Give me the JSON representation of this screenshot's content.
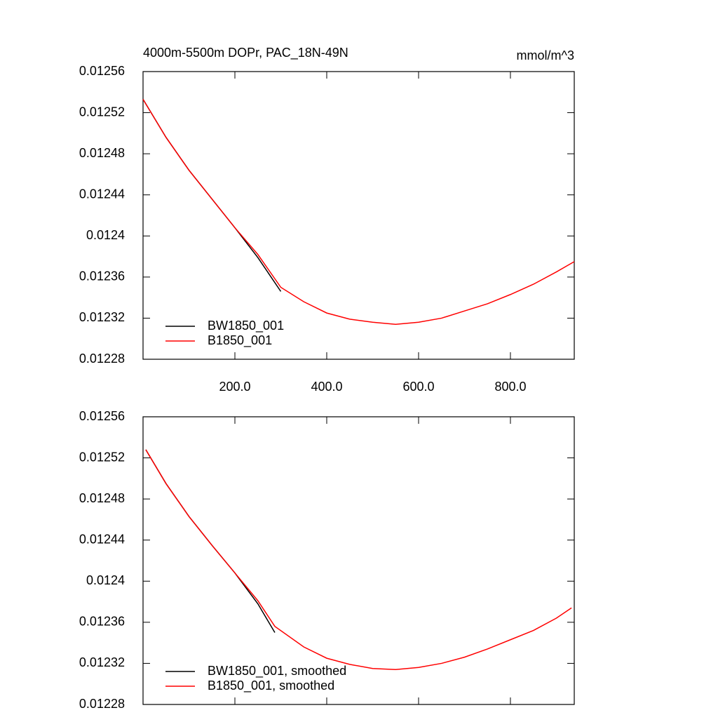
{
  "chart_data": [
    {
      "type": "line",
      "title": "4000m-5500m DOPr, PAC_18N-49N",
      "units_label": "mmol/m^3",
      "x": [
        0,
        50,
        100,
        150,
        200,
        250,
        300,
        350,
        400,
        450,
        500,
        550,
        600,
        650,
        700,
        750,
        800,
        850,
        900,
        939
      ],
      "series": [
        {
          "name": "BW1850_001",
          "color": "#000000",
          "values": [
            0.012533,
            0.012496,
            0.012464,
            0.012436,
            0.012408,
            0.012379,
            0.012346,
            null,
            null,
            null,
            null,
            null,
            null,
            null,
            null,
            null,
            null,
            null,
            null,
            null
          ]
        },
        {
          "name": "B1850_001",
          "color": "#ff0000",
          "values": [
            0.012533,
            0.012496,
            0.012464,
            0.012436,
            0.012408,
            0.012382,
            0.01235,
            0.012336,
            0.012325,
            0.012319,
            0.012316,
            0.012314,
            0.012316,
            0.01232,
            0.012327,
            0.012334,
            0.012343,
            0.012353,
            0.012365,
            0.012375
          ]
        }
      ],
      "xlim": [
        0,
        939
      ],
      "ylim": [
        0.01228,
        0.01256
      ],
      "xticks": [
        {
          "value": 200,
          "label": "200.0"
        },
        {
          "value": 400,
          "label": "400.0"
        },
        {
          "value": 600,
          "label": "600.0"
        },
        {
          "value": 800,
          "label": "800.0"
        }
      ],
      "yticks": [
        0.01228,
        0.01232,
        0.01236,
        0.0124,
        0.01244,
        0.01248,
        0.01252,
        0.01256
      ],
      "show_xtick_labels": true,
      "legend": "lower left"
    },
    {
      "type": "line",
      "x": [
        6,
        50,
        100,
        150,
        200,
        250,
        287,
        350,
        400,
        450,
        500,
        550,
        600,
        650,
        700,
        750,
        800,
        850,
        900,
        933
      ],
      "series": [
        {
          "name": "BW1850_001, smoothed",
          "color": "#000000",
          "values": [
            0.012528,
            0.012495,
            0.012463,
            0.012435,
            0.012408,
            0.012378,
            0.01235,
            null,
            null,
            null,
            null,
            null,
            null,
            null,
            null,
            null,
            null,
            null,
            null,
            null
          ]
        },
        {
          "name": "B1850_001, smoothed",
          "color": "#ff0000",
          "values": [
            0.012528,
            0.012495,
            0.012463,
            0.012435,
            0.012408,
            0.012381,
            0.012356,
            0.012336,
            0.012325,
            0.012319,
            0.012315,
            0.012314,
            0.012316,
            0.01232,
            0.012326,
            0.012334,
            0.012343,
            0.012352,
            0.012364,
            0.012374
          ]
        }
      ],
      "xlim": [
        0,
        939
      ],
      "ylim": [
        0.01228,
        0.01256
      ],
      "xticks": [
        200,
        400,
        600,
        800
      ],
      "yticks": [
        0.01228,
        0.01232,
        0.01236,
        0.0124,
        0.01244,
        0.01248,
        0.01252,
        0.01256
      ],
      "show_xtick_labels": false,
      "legend": "lower left"
    }
  ]
}
